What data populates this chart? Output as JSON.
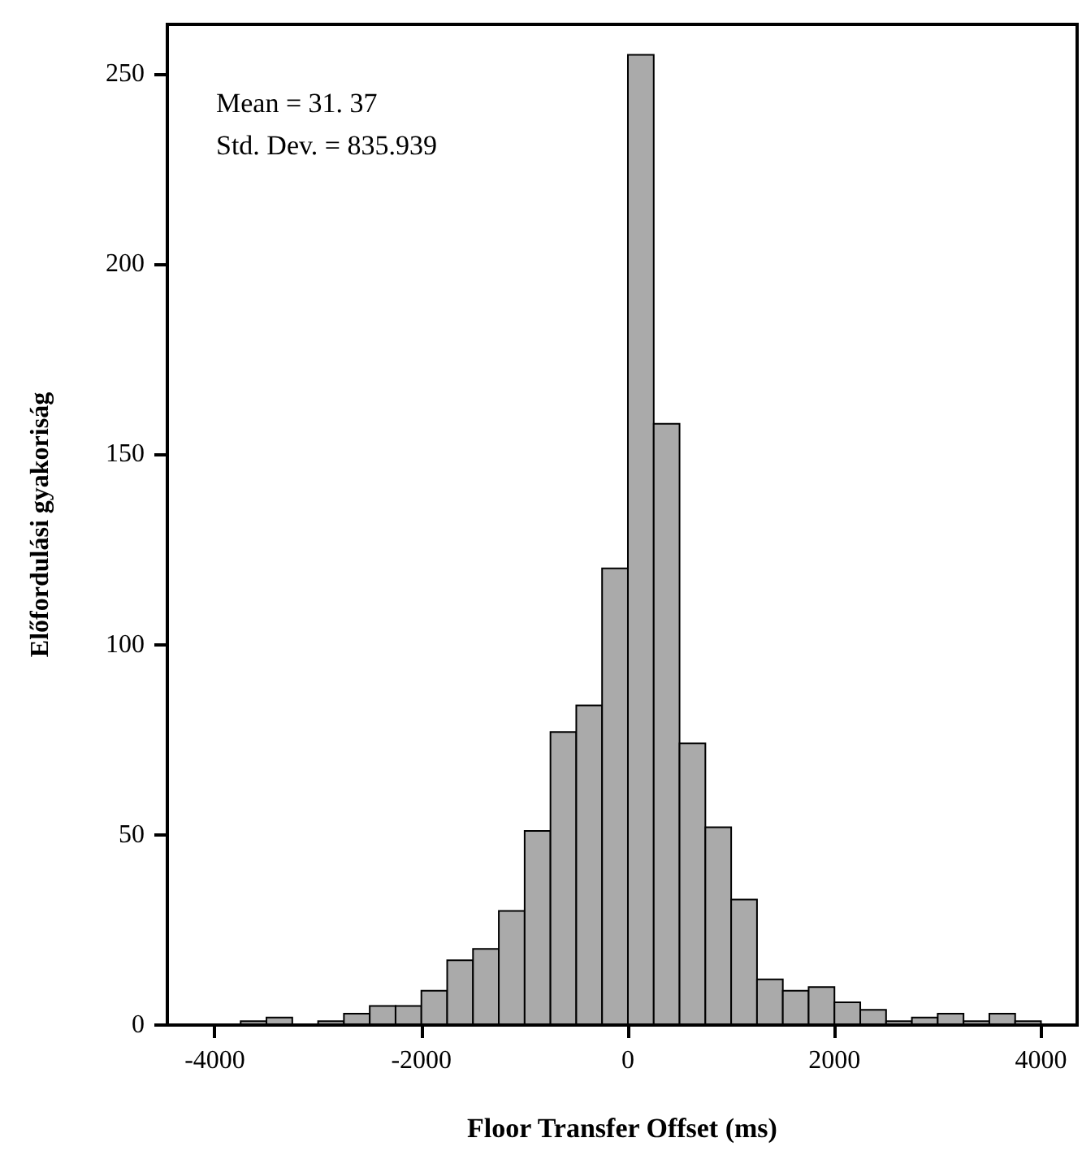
{
  "chart_data": {
    "type": "histogram",
    "xlabel": "Floor Transfer Offset (ms)",
    "ylabel": "Előfordulási gyakoriság",
    "annotations": [
      "Mean = 31. 37",
      "Std. Dev. = 835.939"
    ],
    "bins": [
      -3750,
      -3500,
      -3250,
      -3000,
      -2750,
      -2500,
      -2250,
      -2000,
      -1750,
      -1500,
      -1250,
      -1000,
      -750,
      -500,
      -250,
      0,
      250,
      500,
      750,
      1000,
      1250,
      1500,
      1750,
      2000,
      2250,
      2500,
      2750,
      3000,
      3250,
      3500,
      3750,
      4000
    ],
    "values": [
      1,
      2,
      0,
      1,
      3,
      5,
      5,
      9,
      17,
      20,
      30,
      51,
      77,
      84,
      120,
      255,
      158,
      74,
      52,
      33,
      12,
      9,
      10,
      6,
      4,
      1,
      2,
      3,
      1,
      3,
      1
    ],
    "color": "#aaaaaa",
    "xlim": [
      -4460,
      4350
    ],
    "xticks": [
      -4000,
      -2000,
      0,
      2000,
      4000
    ],
    "ylim": [
      0,
      263
    ],
    "yticks": [
      0,
      50,
      100,
      150,
      200,
      250
    ],
    "grid": false
  }
}
